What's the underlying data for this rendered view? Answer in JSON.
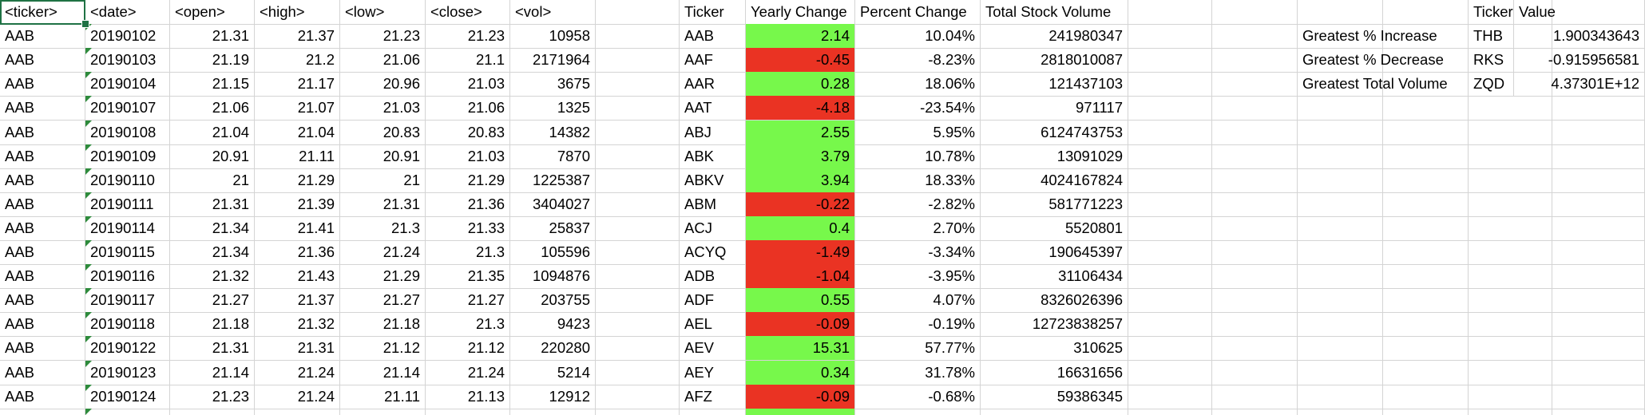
{
  "stock_table": {
    "headers": [
      "<ticker>",
      "<date>",
      "<open>",
      "<high>",
      "<low>",
      "<close>",
      "<vol>"
    ],
    "rows": [
      [
        "AAB",
        "20190102",
        "21.31",
        "21.37",
        "21.23",
        "21.23",
        "10958"
      ],
      [
        "AAB",
        "20190103",
        "21.19",
        "21.2",
        "21.06",
        "21.1",
        "2171964"
      ],
      [
        "AAB",
        "20190104",
        "21.15",
        "21.17",
        "20.96",
        "21.03",
        "3675"
      ],
      [
        "AAB",
        "20190107",
        "21.06",
        "21.07",
        "21.03",
        "21.06",
        "1325"
      ],
      [
        "AAB",
        "20190108",
        "21.04",
        "21.04",
        "20.83",
        "20.83",
        "14382"
      ],
      [
        "AAB",
        "20190109",
        "20.91",
        "21.11",
        "20.91",
        "21.03",
        "7870"
      ],
      [
        "AAB",
        "20190110",
        "21",
        "21.29",
        "21",
        "21.29",
        "1225387"
      ],
      [
        "AAB",
        "20190111",
        "21.31",
        "21.39",
        "21.31",
        "21.36",
        "3404027"
      ],
      [
        "AAB",
        "20190114",
        "21.34",
        "21.41",
        "21.3",
        "21.33",
        "25837"
      ],
      [
        "AAB",
        "20190115",
        "21.34",
        "21.36",
        "21.24",
        "21.3",
        "105596"
      ],
      [
        "AAB",
        "20190116",
        "21.32",
        "21.43",
        "21.29",
        "21.35",
        "1094876"
      ],
      [
        "AAB",
        "20190117",
        "21.27",
        "21.37",
        "21.27",
        "21.27",
        "203755"
      ],
      [
        "AAB",
        "20190118",
        "21.18",
        "21.32",
        "21.18",
        "21.3",
        "9423"
      ],
      [
        "AAB",
        "20190122",
        "21.31",
        "21.31",
        "21.12",
        "21.12",
        "220280"
      ],
      [
        "AAB",
        "20190123",
        "21.14",
        "21.24",
        "21.14",
        "21.24",
        "5214"
      ],
      [
        "AAB",
        "20190124",
        "21.23",
        "21.24",
        "21.11",
        "21.13",
        "12912"
      ]
    ]
  },
  "summary_table": {
    "headers": [
      "Ticker",
      "Yearly Change",
      "Percent Change",
      "Total Stock Volume"
    ],
    "rows": [
      {
        "ticker": "AAB",
        "change": "2.14",
        "percent": "10.04%",
        "volume": "241980347",
        "status": "positive"
      },
      {
        "ticker": "AAF",
        "change": "-0.45",
        "percent": "-8.23%",
        "volume": "2818010087",
        "status": "negative"
      },
      {
        "ticker": "AAR",
        "change": "0.28",
        "percent": "18.06%",
        "volume": "121437103",
        "status": "positive"
      },
      {
        "ticker": "AAT",
        "change": "-4.18",
        "percent": "-23.54%",
        "volume": "971117",
        "status": "negative"
      },
      {
        "ticker": "ABJ",
        "change": "2.55",
        "percent": "5.95%",
        "volume": "6124743753",
        "status": "positive"
      },
      {
        "ticker": "ABK",
        "change": "3.79",
        "percent": "10.78%",
        "volume": "13091029",
        "status": "positive"
      },
      {
        "ticker": "ABKV",
        "change": "3.94",
        "percent": "18.33%",
        "volume": "4024167824",
        "status": "positive"
      },
      {
        "ticker": "ABM",
        "change": "-0.22",
        "percent": "-2.82%",
        "volume": "581771223",
        "status": "negative"
      },
      {
        "ticker": "ACJ",
        "change": "0.4",
        "percent": "2.70%",
        "volume": "5520801",
        "status": "positive"
      },
      {
        "ticker": "ACYQ",
        "change": "-1.49",
        "percent": "-3.34%",
        "volume": "190645397",
        "status": "negative"
      },
      {
        "ticker": "ADB",
        "change": "-1.04",
        "percent": "-3.95%",
        "volume": "31106434",
        "status": "negative"
      },
      {
        "ticker": "ADF",
        "change": "0.55",
        "percent": "4.07%",
        "volume": "8326026396",
        "status": "positive"
      },
      {
        "ticker": "AEL",
        "change": "-0.09",
        "percent": "-0.19%",
        "volume": "12723838257",
        "status": "negative"
      },
      {
        "ticker": "AEV",
        "change": "15.31",
        "percent": "57.77%",
        "volume": "310625",
        "status": "positive"
      },
      {
        "ticker": "AEY",
        "change": "0.34",
        "percent": "31.78%",
        "volume": "16631656",
        "status": "positive"
      },
      {
        "ticker": "AFZ",
        "change": "-0.09",
        "percent": "-0.68%",
        "volume": "59386345",
        "status": "negative"
      }
    ]
  },
  "greatest_table": {
    "headers": [
      "Ticker",
      "Value"
    ],
    "rows": [
      {
        "label": "Greatest % Increase",
        "ticker": "THB",
        "value": "1.900343643"
      },
      {
        "label": "Greatest % Decrease",
        "ticker": "RKS",
        "value": "-0.915956581"
      },
      {
        "label": "Greatest Total Volume",
        "ticker": "ZQD",
        "value": "4.37301E+12"
      }
    ]
  },
  "colors": {
    "positive_fill": "#77f84b",
    "negative_fill": "#ea3323",
    "gridline": "#d4d4d4",
    "selection": "#1f7244",
    "error_indicator": "#2e8b3c"
  }
}
